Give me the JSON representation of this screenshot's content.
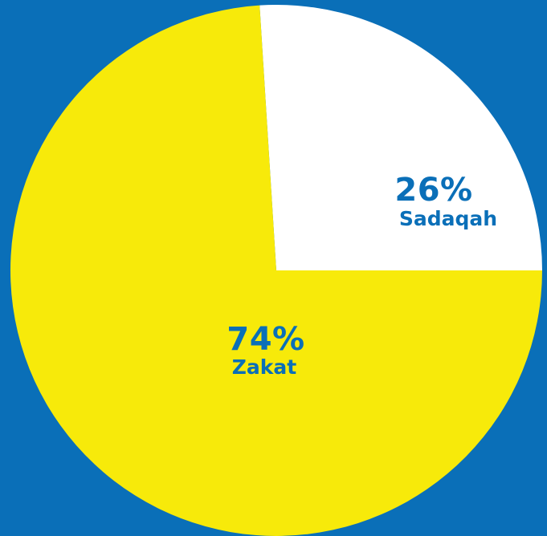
{
  "chart_data": {
    "type": "pie",
    "title": "",
    "slices": [
      {
        "label": "Sadaqah",
        "value": 26,
        "display": "26%",
        "color": "#ffffff"
      },
      {
        "label": "Zakat",
        "value": 74,
        "display": "74%",
        "color": "#f7ea0a"
      }
    ]
  },
  "colors": {
    "background": "#0a6fb8",
    "label_text": "#0a6fb8"
  }
}
